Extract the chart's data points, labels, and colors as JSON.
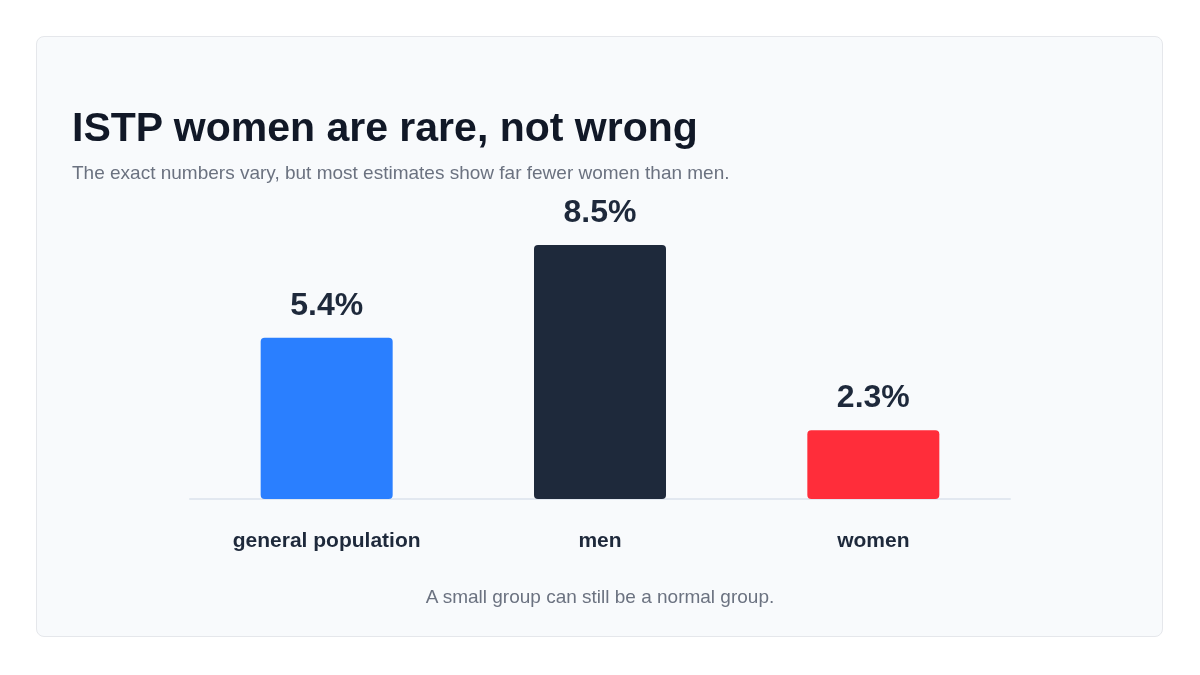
{
  "chart_data": {
    "type": "bar",
    "title": "ISTP women are rare, not wrong",
    "subtitle": "The exact numbers vary, but most estimates show far fewer women than men.",
    "categories": [
      "general population",
      "men",
      "women"
    ],
    "values": [
      5.4,
      8.5,
      2.3
    ],
    "colors": [
      "#2a7fff",
      "#1e293b",
      "#ff2d3a"
    ],
    "value_labels": [
      "5.4%",
      "8.5%",
      "2.3%"
    ],
    "annotations": [
      "A small group can still be a normal group."
    ]
  }
}
